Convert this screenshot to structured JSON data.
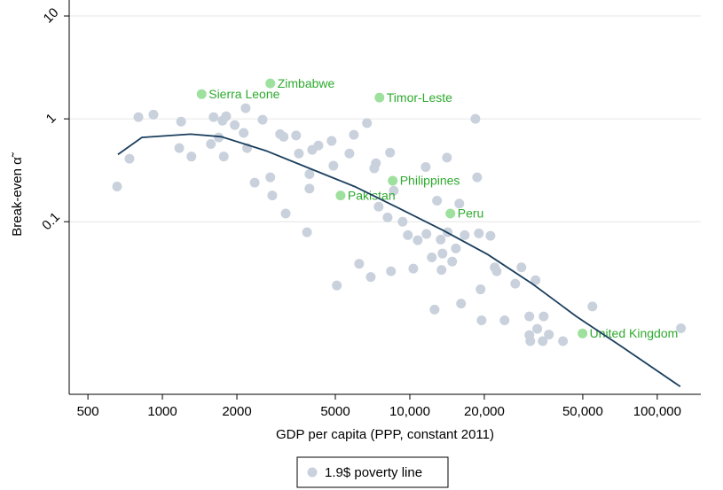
{
  "chart_data": {
    "type": "scatter",
    "x_label": "GDP per capita (PPP, constant 2011)",
    "y_label": "Break-even α̃",
    "xscale": "log",
    "yscale": "log",
    "xlim": [
      420,
      150000
    ],
    "ylim": [
      0.0021,
      14.3
    ],
    "xticks": [
      500,
      1000,
      2000,
      5000,
      {
        "value": 10000,
        "label": "10,000"
      },
      {
        "value": 20000,
        "label": "20,000"
      },
      {
        "value": 50000,
        "label": "50,000"
      },
      {
        "value": 100000,
        "label": "100,000"
      }
    ],
    "yticks": [
      0.1,
      1,
      10
    ],
    "grid": true,
    "legend": "bottom",
    "series": [
      {
        "name": "1.9$ poverty line",
        "color": "#c9d1dc",
        "x": [
          656,
          736,
          800,
          920,
          1170,
          1190,
          1310,
          1570,
          1610,
          1690,
          1750,
          1770,
          1810,
          1960,
          2130,
          2170,
          2200,
          2360,
          2540,
          2730,
          2780,
          2990,
          3090,
          3150,
          3470,
          3560,
          3840,
          3930,
          3930,
          4030,
          4270,
          4830,
          4910,
          5070,
          5700,
          5940,
          6240,
          6710,
          6950,
          7180,
          7290,
          7480,
          8130,
          8320,
          8390,
          8610,
          9350,
          9820,
          10330,
          10760,
          11590,
          11670,
          12270,
          12590,
          12880,
          13330,
          13430,
          13550,
          14130,
          14220,
          14830,
          15350,
          15850,
          16110,
          16670,
          18410,
          18710,
          19010,
          19320,
          19500,
          21180,
          22030,
          22440,
          24150,
          26670,
          28250,
          30410,
          30410,
          30690,
          32210,
          32730,
          34430,
          34750,
          36480,
          41590,
          54700,
          124700
        ],
        "y": [
          0.22,
          0.41,
          1.04,
          1.1,
          0.52,
          0.94,
          0.43,
          0.57,
          1.04,
          0.66,
          0.96,
          0.43,
          1.06,
          0.87,
          0.73,
          1.27,
          0.52,
          0.24,
          0.98,
          0.27,
          0.18,
          0.71,
          0.67,
          0.12,
          0.69,
          0.46,
          0.079,
          0.29,
          0.21,
          0.5,
          0.55,
          0.61,
          0.35,
          0.024,
          0.46,
          0.7,
          0.039,
          0.91,
          0.029,
          0.33,
          0.37,
          0.14,
          0.11,
          0.47,
          0.033,
          0.2,
          0.1,
          0.074,
          0.035,
          0.066,
          0.34,
          0.076,
          0.045,
          0.014,
          0.16,
          0.067,
          0.034,
          0.049,
          0.42,
          0.079,
          0.041,
          0.055,
          0.15,
          0.016,
          0.074,
          1.0,
          0.27,
          0.077,
          0.022,
          0.011,
          0.073,
          0.036,
          0.033,
          0.011,
          0.025,
          0.036,
          0.012,
          0.0079,
          0.0069,
          0.027,
          0.0091,
          0.0069,
          0.012,
          0.008,
          0.0069,
          0.015,
          0.0092
        ]
      }
    ],
    "highlighted": {
      "color": "#9ee09e",
      "label_color": "#2eaa2e",
      "points": [
        {
          "label": "Zimbabwe",
          "x": 2730,
          "y": 2.21
        },
        {
          "label": "Sierra Leone",
          "x": 1440,
          "y": 1.74
        },
        {
          "label": "Timor-Leste",
          "x": 7540,
          "y": 1.61
        },
        {
          "label": "Philippines",
          "x": 8530,
          "y": 0.25
        },
        {
          "label": "Pakistan",
          "x": 5250,
          "y": 0.18
        },
        {
          "label": "Peru",
          "x": 14590,
          "y": 0.12
        },
        {
          "label": "United Kingdom",
          "x": 49890,
          "y": 0.0082
        }
      ]
    },
    "fit": {
      "color": "#1b3f5e",
      "x": [
        661,
        826,
        1300,
        1730,
        2620,
        3930,
        5980,
        9040,
        13680,
        20650,
        31190,
        47100,
        71120,
        123900
      ],
      "y": [
        0.45,
        0.66,
        0.71,
        0.67,
        0.49,
        0.33,
        0.22,
        0.135,
        0.082,
        0.048,
        0.025,
        0.012,
        0.0062,
        0.0025
      ]
    }
  }
}
